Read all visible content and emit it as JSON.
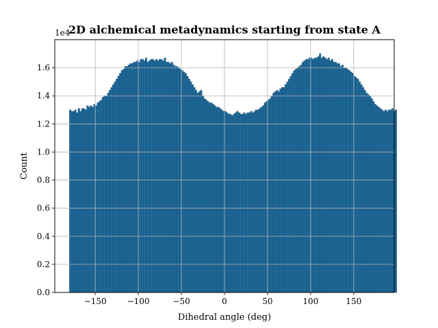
{
  "chart_data": {
    "type": "bar",
    "title": "2D alchemical metadynamics starting from state A",
    "xlabel": "Dihedral angle (deg)",
    "ylabel": "Count",
    "y_offset_label": "1e4",
    "y_scale": 10000,
    "xlim": [
      -197,
      197
    ],
    "ylim": [
      0,
      1.8
    ],
    "xticks": [
      -150,
      -100,
      -50,
      0,
      50,
      100,
      150
    ],
    "xtick_labels": [
      "−150",
      "−100",
      "−50",
      "0",
      "50",
      "100",
      "150"
    ],
    "yticks": [
      0.0,
      0.2,
      0.4,
      0.6,
      0.8,
      1.0,
      1.2,
      1.4,
      1.6
    ],
    "ytick_labels": [
      "0.0",
      "0.2",
      "0.4",
      "0.6",
      "0.8",
      "1.0",
      "1.2",
      "1.4",
      "1.6"
    ],
    "grid": true,
    "bar_color": "#1f6b9c",
    "bar_edge_color": "#0f3c5c",
    "bin_start": -180,
    "bin_width": 2,
    "values": [
      1.3,
      1.29,
      1.29,
      1.3,
      1.28,
      1.31,
      1.29,
      1.31,
      1.31,
      1.3,
      1.33,
      1.32,
      1.33,
      1.32,
      1.34,
      1.33,
      1.35,
      1.36,
      1.37,
      1.39,
      1.4,
      1.4,
      1.42,
      1.44,
      1.46,
      1.48,
      1.5,
      1.52,
      1.54,
      1.56,
      1.58,
      1.59,
      1.61,
      1.61,
      1.62,
      1.63,
      1.63,
      1.64,
      1.64,
      1.65,
      1.64,
      1.66,
      1.66,
      1.65,
      1.67,
      1.64,
      1.65,
      1.66,
      1.66,
      1.65,
      1.66,
      1.65,
      1.66,
      1.66,
      1.65,
      1.67,
      1.64,
      1.64,
      1.63,
      1.64,
      1.62,
      1.61,
      1.61,
      1.6,
      1.59,
      1.58,
      1.57,
      1.56,
      1.54,
      1.52,
      1.5,
      1.48,
      1.46,
      1.44,
      1.42,
      1.43,
      1.44,
      1.4,
      1.38,
      1.37,
      1.36,
      1.35,
      1.35,
      1.34,
      1.33,
      1.32,
      1.32,
      1.31,
      1.3,
      1.29,
      1.29,
      1.28,
      1.27,
      1.27,
      1.26,
      1.27,
      1.28,
      1.29,
      1.28,
      1.27,
      1.27,
      1.28,
      1.27,
      1.28,
      1.28,
      1.29,
      1.28,
      1.29,
      1.3,
      1.3,
      1.31,
      1.32,
      1.33,
      1.35,
      1.36,
      1.37,
      1.38,
      1.4,
      1.42,
      1.43,
      1.44,
      1.43,
      1.45,
      1.46,
      1.46,
      1.48,
      1.5,
      1.52,
      1.54,
      1.56,
      1.58,
      1.59,
      1.6,
      1.61,
      1.62,
      1.64,
      1.65,
      1.66,
      1.66,
      1.67,
      1.67,
      1.66,
      1.67,
      1.67,
      1.68,
      1.7,
      1.67,
      1.68,
      1.67,
      1.66,
      1.67,
      1.65,
      1.66,
      1.64,
      1.64,
      1.63,
      1.63,
      1.61,
      1.62,
      1.6,
      1.6,
      1.59,
      1.58,
      1.57,
      1.56,
      1.54,
      1.53,
      1.52,
      1.5,
      1.48,
      1.46,
      1.44,
      1.42,
      1.41,
      1.4,
      1.38,
      1.36,
      1.34,
      1.33,
      1.32,
      1.31,
      1.3,
      1.29,
      1.3,
      1.29,
      1.3,
      1.3,
      1.31,
      1.29,
      1.3
    ]
  }
}
